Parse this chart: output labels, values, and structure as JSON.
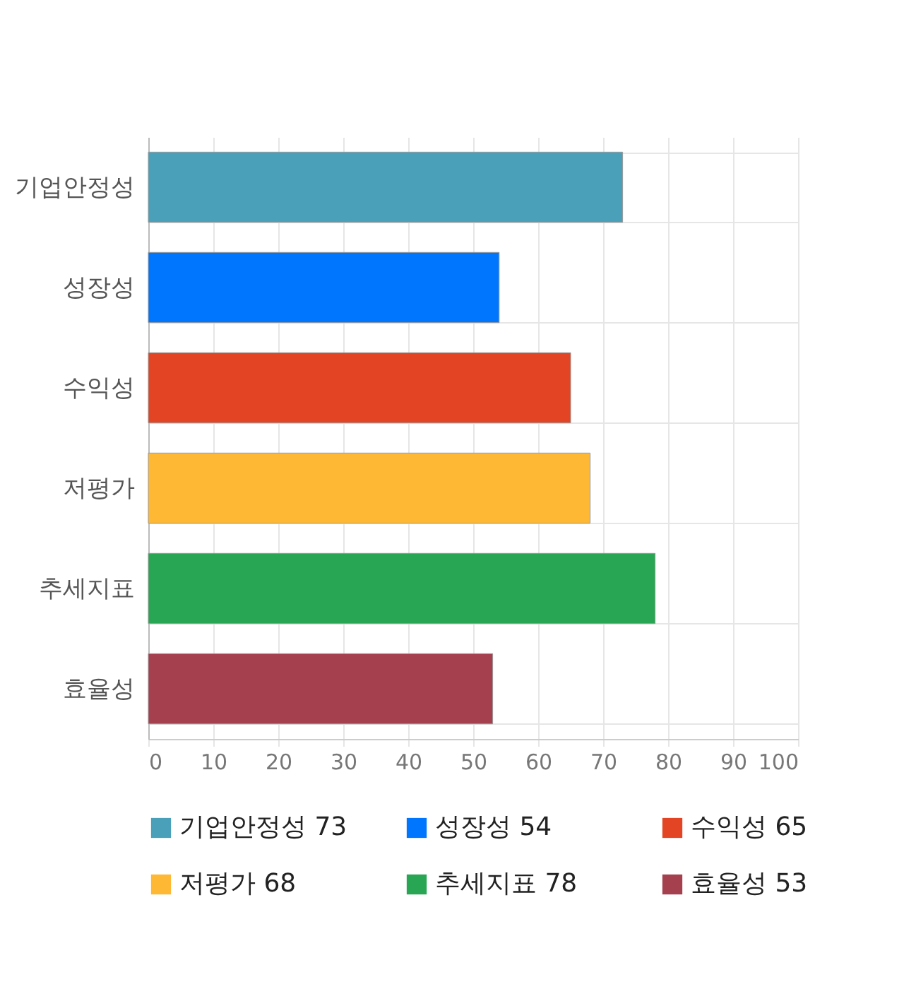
{
  "chart_data": {
    "type": "bar",
    "orientation": "horizontal",
    "categories": [
      "기업안정성",
      "성장성",
      "수익성",
      "저평가",
      "추세지표",
      "효율성"
    ],
    "series": [
      {
        "name": "기업안정성 73",
        "color": "#4aa0b8",
        "values": [
          73,
          null,
          null,
          null,
          null,
          null
        ]
      },
      {
        "name": "성장성 54",
        "color": "#0076ff",
        "values": [
          null,
          54,
          null,
          null,
          null,
          null
        ]
      },
      {
        "name": "수익성 65",
        "color": "#e34423",
        "values": [
          null,
          null,
          65,
          null,
          null,
          null
        ]
      },
      {
        "name": "저평가 68",
        "color": "#ffb833",
        "values": [
          null,
          null,
          null,
          68,
          null,
          null
        ]
      },
      {
        "name": "추세지표 78",
        "color": "#28a653",
        "values": [
          null,
          null,
          null,
          null,
          78,
          null
        ]
      },
      {
        "name": "효율성 53",
        "color": "#a5404f",
        "values": [
          null,
          null,
          null,
          null,
          null,
          53
        ]
      }
    ],
    "xlim": [
      0,
      100
    ],
    "xticks": [
      0,
      10,
      20,
      30,
      40,
      50,
      60,
      70,
      80,
      90,
      100
    ],
    "grid": true,
    "legend": "bottom"
  }
}
